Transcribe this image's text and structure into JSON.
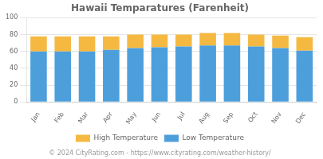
{
  "chart_data": {
    "type": "bar",
    "stacked": true,
    "title": "Hawaii Temparatures (Farenheit)",
    "annotations": [
      "© 2024 CityRating.com - https://www.cityrating.com/weather-history/"
    ],
    "categories": [
      "Jan",
      "Feb",
      "Mar",
      "Apr",
      "May",
      "Jun",
      "Jul",
      "Aug",
      "Sep",
      "Oct",
      "Nov",
      "Dec"
    ],
    "series": [
      {
        "name": "Low Temperature",
        "color": "#4d9fdc",
        "values": [
          60,
          60,
          60,
          62,
          64,
          65,
          66,
          67,
          67,
          66,
          64,
          61
        ]
      },
      {
        "name": "High Temperature",
        "color": "#f5b942",
        "values": [
          18,
          18,
          18,
          16,
          16,
          15,
          14,
          15,
          15,
          14,
          15,
          16
        ]
      }
    ],
    "ylim": [
      0,
      100
    ],
    "yticks": [
      0,
      20,
      40,
      60,
      80,
      100
    ],
    "grid": true,
    "legend": "bottom"
  }
}
